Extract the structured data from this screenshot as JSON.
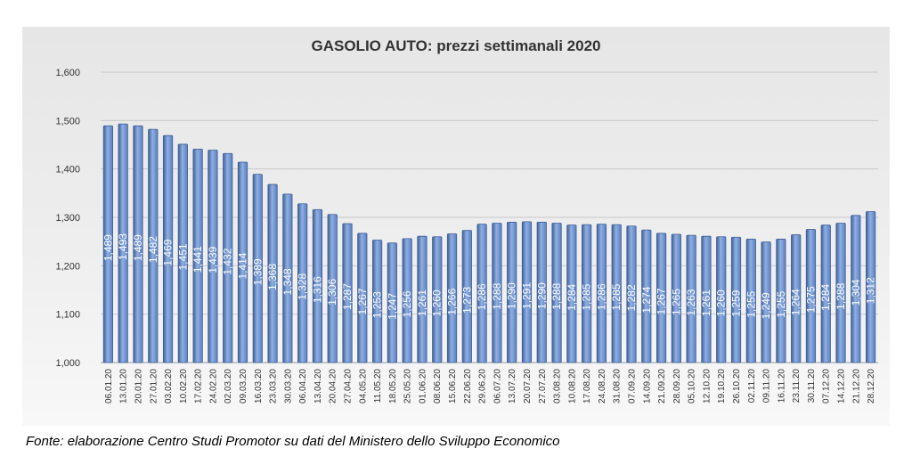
{
  "source_note": "Fonte: elaborazione Centro Studi Promotor su dati del Ministero dello Sviluppo Economico",
  "colors": {
    "bar": "#5b7fbf",
    "bar_dark": "#3f5f96",
    "bar_light": "#8fb0e3",
    "grid": "#c8c8c8",
    "axis_text": "#333333",
    "title": "#333333",
    "value_label": "#ffffff"
  },
  "chart_data": {
    "type": "bar",
    "title": "GASOLIO AUTO: prezzi settimanali 2020",
    "xlabel": "",
    "ylabel": "",
    "ylim": [
      1.0,
      1.6
    ],
    "y_ticks": [
      "1,000",
      "1,100",
      "1,200",
      "1,300",
      "1,400",
      "1,500",
      "1,600"
    ],
    "y_tick_values": [
      1.0,
      1.1,
      1.2,
      1.3,
      1.4,
      1.5,
      1.6
    ],
    "grid": true,
    "legend": "none",
    "categories": [
      "06.01.20",
      "13.01.20",
      "20.01.20",
      "27.01.20",
      "03.02.20",
      "10.02.20",
      "17.02.20",
      "24.02.20",
      "02.03.20",
      "09.03.20",
      "16.03.20",
      "23.03.20",
      "30.03.20",
      "06.04.20",
      "13.04.20",
      "20.04.20",
      "27.04.20",
      "04.05.20",
      "11.05.20",
      "18.05.20",
      "25.05.20",
      "01.06.20",
      "08.06.20",
      "15.06.20",
      "22.06.20",
      "29.06.20",
      "06.07.20",
      "13.07.20",
      "20.07.20",
      "27.07.20",
      "03.08.20",
      "10.08.20",
      "17.08.20",
      "24.08.20",
      "31.08.20",
      "07.09.20",
      "14.09.20",
      "21.09.20",
      "28.09.20",
      "05.10.20",
      "12.10.20",
      "19.10.20",
      "26.10.20",
      "02.11.20",
      "09.11.20",
      "16.11.20",
      "23.11.20",
      "30.11.20",
      "07.12.20",
      "14.12.20",
      "21.12.20",
      "28.12.20"
    ],
    "values": [
      1.489,
      1.493,
      1.489,
      1.482,
      1.469,
      1.451,
      1.441,
      1.439,
      1.432,
      1.414,
      1.389,
      1.368,
      1.348,
      1.328,
      1.316,
      1.306,
      1.287,
      1.267,
      1.253,
      1.247,
      1.256,
      1.261,
      1.26,
      1.266,
      1.273,
      1.286,
      1.288,
      1.29,
      1.291,
      1.29,
      1.288,
      1.284,
      1.285,
      1.286,
      1.285,
      1.282,
      1.274,
      1.267,
      1.265,
      1.263,
      1.261,
      1.26,
      1.259,
      1.255,
      1.249,
      1.255,
      1.264,
      1.275,
      1.284,
      1.288,
      1.304,
      1.312
    ],
    "value_labels": [
      "1,489",
      "1,493",
      "1,489",
      "1,482",
      "1,469",
      "1,451",
      "1,441",
      "1,439",
      "1,432",
      "1,414",
      "1,389",
      "1,368",
      "1,348",
      "1,328",
      "1,316",
      "1,306",
      "1,287",
      "1,267",
      "1,253",
      "1,247",
      "1,256",
      "1,261",
      "1,260",
      "1,266",
      "1,273",
      "1,286",
      "1,288",
      "1,290",
      "1,291",
      "1,290",
      "1,288",
      "1,284",
      "1,285",
      "1,286",
      "1,285",
      "1,282",
      "1,274",
      "1,267",
      "1,265",
      "1,263",
      "1,261",
      "1,260",
      "1,259",
      "1,255",
      "1,249",
      "1,255",
      "1,264",
      "1,275",
      "1,284",
      "1,288",
      "1,304",
      "1,312"
    ]
  }
}
